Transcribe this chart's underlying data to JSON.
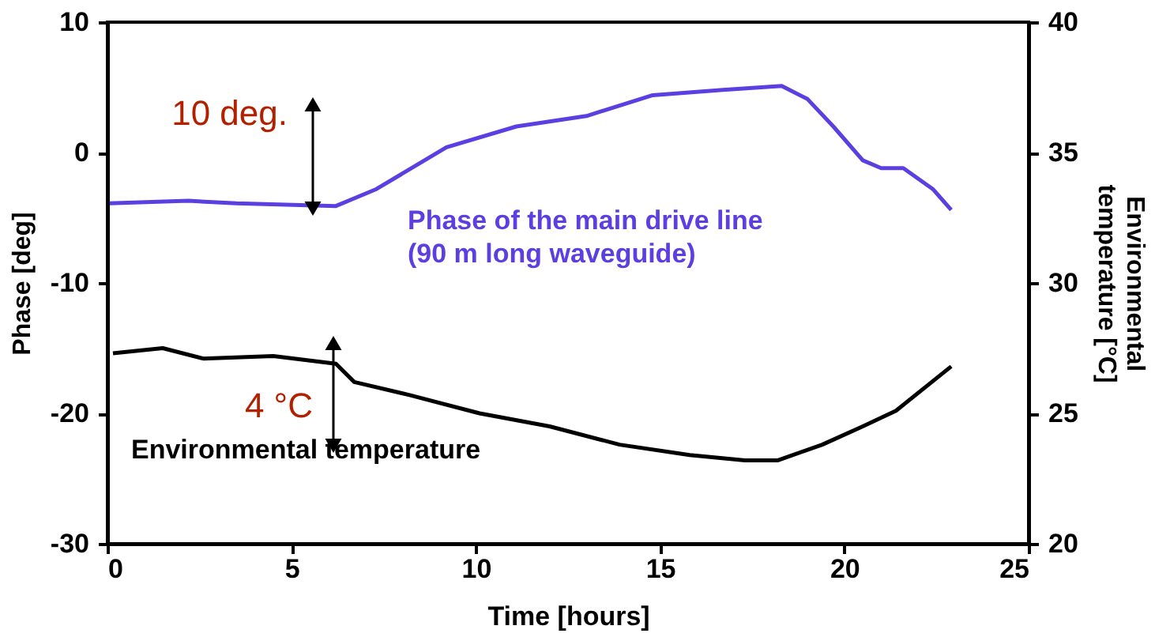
{
  "chart_data": {
    "type": "line",
    "xlabel": "Time [hours]",
    "ylabel": "Phase [deg]",
    "y2label": "Environmental\ntemperature [°C]",
    "xlim": [
      0,
      25
    ],
    "xticks": [
      0,
      5,
      10,
      15,
      20,
      25
    ],
    "ylim": [
      -30,
      10
    ],
    "yticks": [
      -30,
      -20,
      -10,
      0,
      10
    ],
    "y2lim": [
      20,
      40
    ],
    "y2ticks": [
      20,
      25,
      30,
      35,
      40
    ],
    "grid": false,
    "marker": "none",
    "line_style": "solid",
    "series": [
      {
        "name": "Phase of the main drive line\n(90 m long waveguide)",
        "color": "#5b3fe0",
        "x": [
          0.06,
          2.2,
          3.5,
          6.2,
          7.3,
          9.2,
          11.1,
          13.0,
          14.8,
          16.7,
          18.3,
          19.0,
          19.7,
          20.5,
          21.0,
          21.6,
          22.4,
          22.9
        ],
        "values": [
          -3.9,
          -3.7,
          -3.9,
          -4.1,
          -2.8,
          0.4,
          2.0,
          2.8,
          4.4,
          4.8,
          5.1,
          4.1,
          2.0,
          -0.6,
          -1.2,
          -1.2,
          -2.8,
          -4.4
        ]
      },
      {
        "name": "Environmental temperature",
        "color": "#000000",
        "axis": "y2",
        "x": [
          0.15,
          1.5,
          2.6,
          4.5,
          6.2,
          6.7,
          8.2,
          10.1,
          12.0,
          13.9,
          15.8,
          17.3,
          18.2,
          19.4,
          20.5,
          21.4,
          22.9
        ],
        "values": [
          27.3,
          27.5,
          27.1,
          27.2,
          26.9,
          26.2,
          25.7,
          25.0,
          24.5,
          23.8,
          23.4,
          23.2,
          23.2,
          23.8,
          24.5,
          25.1,
          26.8
        ]
      }
    ],
    "annotations": [
      "10 deg.",
      "4 °C"
    ]
  }
}
